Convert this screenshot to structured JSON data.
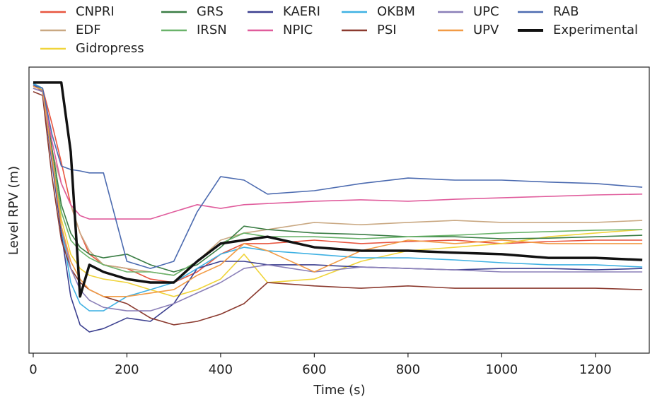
{
  "chart_data": {
    "type": "line",
    "xlabel": "Time (s)",
    "ylabel": "Level RPV (m)",
    "x": [
      0,
      20,
      40,
      60,
      80,
      100,
      120,
      150,
      200,
      250,
      300,
      350,
      400,
      450,
      500,
      600,
      700,
      800,
      900,
      1000,
      1100,
      1200,
      1300
    ],
    "xlim": [
      -9,
      1315
    ],
    "xticks": [
      0,
      200,
      400,
      600,
      800,
      1000,
      1200
    ],
    "ylim": [
      0,
      10
    ],
    "series": [
      {
        "name": "CNPRI",
        "color": "#e8553f",
        "values": [
          9.43,
          9.26,
          8.02,
          6.67,
          5.19,
          4.2,
          3.46,
          3.09,
          2.96,
          2.59,
          2.47,
          2.84,
          3.46,
          3.83,
          3.83,
          3.95,
          3.83,
          3.9,
          3.95,
          3.83,
          3.9,
          3.95,
          3.95
        ]
      },
      {
        "name": "EDF",
        "color": "#c9a882",
        "values": [
          9.26,
          9.14,
          7.04,
          5.93,
          5.19,
          4.2,
          3.58,
          3.09,
          2.96,
          2.84,
          2.72,
          3.21,
          3.95,
          4.2,
          4.32,
          4.57,
          4.49,
          4.57,
          4.64,
          4.57,
          4.57,
          4.57,
          4.64
        ]
      },
      {
        "name": "Gidropress",
        "color": "#f0d43a",
        "values": [
          9.38,
          9.19,
          6.91,
          4.69,
          3.46,
          2.96,
          2.72,
          2.59,
          2.47,
          2.22,
          1.98,
          2.22,
          2.59,
          3.46,
          2.47,
          2.59,
          3.21,
          3.58,
          3.7,
          3.83,
          4.07,
          4.2,
          4.32
        ]
      },
      {
        "name": "GRS",
        "color": "#3a7d44",
        "values": [
          9.43,
          9.26,
          7.16,
          5.19,
          4.2,
          3.7,
          3.46,
          3.33,
          3.46,
          3.09,
          2.84,
          3.09,
          3.7,
          4.44,
          4.32,
          4.2,
          4.15,
          4.07,
          4.07,
          4.0,
          4.02,
          4.07,
          4.12
        ]
      },
      {
        "name": "IRSN",
        "color": "#6ab36a",
        "values": [
          9.38,
          9.19,
          6.91,
          4.94,
          3.95,
          3.58,
          3.33,
          3.09,
          2.84,
          2.84,
          2.72,
          3.21,
          3.83,
          4.2,
          4.07,
          4.07,
          4.0,
          4.07,
          4.12,
          4.2,
          4.25,
          4.3,
          4.32
        ]
      },
      {
        "name": "KAERI",
        "color": "#3b3f8f",
        "values": [
          9.38,
          9.14,
          6.67,
          4.2,
          1.98,
          0.99,
          0.74,
          0.86,
          1.23,
          1.11,
          1.73,
          2.96,
          3.21,
          3.21,
          3.09,
          3.09,
          3.01,
          2.96,
          2.91,
          2.96,
          2.96,
          2.91,
          2.96
        ]
      },
      {
        "name": "NPIC",
        "color": "#e05c9c",
        "values": [
          9.26,
          9.14,
          7.41,
          5.93,
          5.19,
          4.81,
          4.69,
          4.69,
          4.69,
          4.69,
          4.94,
          5.19,
          5.06,
          5.19,
          5.23,
          5.31,
          5.36,
          5.31,
          5.38,
          5.43,
          5.48,
          5.53,
          5.56
        ]
      },
      {
        "name": "OKBM",
        "color": "#3fb1e3",
        "values": [
          9.43,
          9.26,
          6.91,
          4.44,
          2.47,
          1.73,
          1.48,
          1.48,
          1.98,
          2.22,
          2.47,
          2.96,
          3.46,
          3.7,
          3.58,
          3.46,
          3.33,
          3.33,
          3.26,
          3.16,
          3.09,
          3.09,
          3.01
        ]
      },
      {
        "name": "PSI",
        "color": "#8b3a2f",
        "values": [
          9.14,
          9.01,
          6.17,
          3.95,
          2.96,
          2.47,
          2.22,
          1.98,
          1.73,
          1.23,
          0.99,
          1.11,
          1.36,
          1.73,
          2.47,
          2.35,
          2.27,
          2.35,
          2.27,
          2.27,
          2.27,
          2.27,
          2.22
        ]
      },
      {
        "name": "UPC",
        "color": "#8a7fb8",
        "values": [
          9.26,
          9.14,
          6.79,
          4.44,
          2.96,
          2.22,
          1.85,
          1.6,
          1.48,
          1.48,
          1.73,
          2.1,
          2.47,
          2.96,
          3.09,
          2.84,
          3.01,
          2.96,
          2.91,
          2.84,
          2.84,
          2.84,
          2.84
        ]
      },
      {
        "name": "UPV",
        "color": "#f29b45",
        "values": [
          9.33,
          9.19,
          6.91,
          4.44,
          3.21,
          2.59,
          2.22,
          1.98,
          1.98,
          2.1,
          2.22,
          2.72,
          3.09,
          3.83,
          3.58,
          2.84,
          3.58,
          3.95,
          3.83,
          3.95,
          3.83,
          3.83,
          3.83
        ]
      },
      {
        "name": "RAB",
        "color": "#4c6bb0",
        "values": [
          9.38,
          9.26,
          7.65,
          6.54,
          6.42,
          6.37,
          6.3,
          6.3,
          3.21,
          2.96,
          3.21,
          4.94,
          6.17,
          6.05,
          5.56,
          5.68,
          5.93,
          6.12,
          6.05,
          6.05,
          5.98,
          5.93,
          5.8
        ]
      },
      {
        "name": "Experimental",
        "color": "#111111",
        "values": [
          9.46,
          9.46,
          9.46,
          9.46,
          7.04,
          1.98,
          3.09,
          2.84,
          2.59,
          2.47,
          2.47,
          3.21,
          3.83,
          3.95,
          4.07,
          3.7,
          3.58,
          3.58,
          3.51,
          3.46,
          3.33,
          3.33,
          3.26
        ]
      }
    ]
  }
}
